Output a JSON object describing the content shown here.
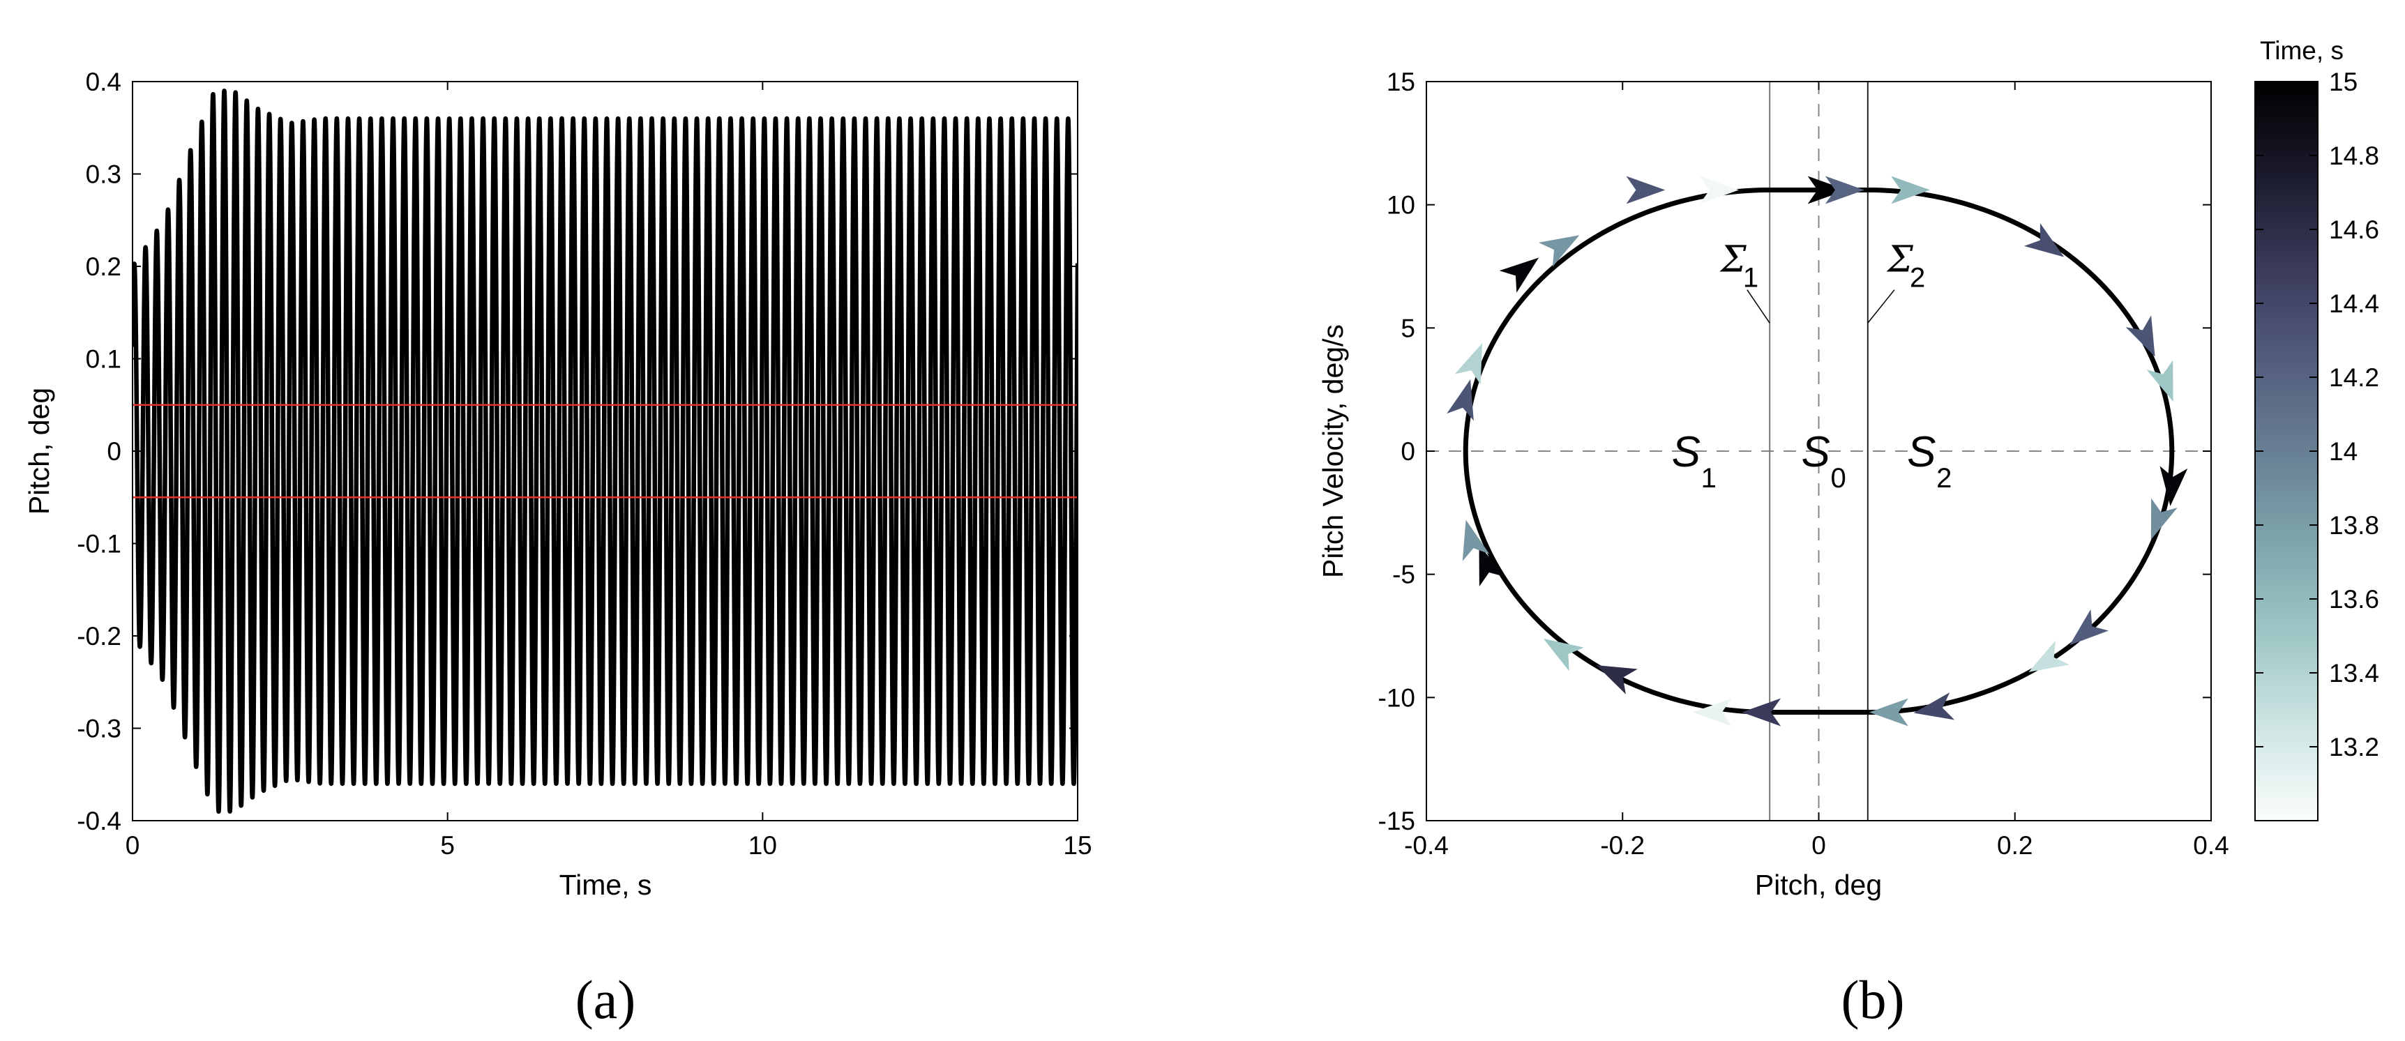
{
  "chart_data": [
    {
      "type": "line",
      "panel_label": "(a)",
      "xlabel": "Time, s",
      "ylabel": "Pitch, deg",
      "xlim": [
        0,
        15
      ],
      "ylim": [
        -0.4,
        0.4
      ],
      "xticks": [
        0,
        5,
        10,
        15
      ],
      "xtick_labels": [
        "0",
        "5",
        "10",
        "15"
      ],
      "yticks": [
        0.4,
        0.3,
        0.2,
        0.1,
        0,
        -0.1,
        -0.2,
        -0.3,
        -0.4
      ],
      "ytick_labels": [
        "0.4",
        "0.3",
        "0.2",
        "0.1",
        "0",
        "-0.1",
        "-0.2",
        "-0.3",
        "-0.4"
      ],
      "series": [
        {
          "color": "#000000",
          "frequency_hz": 5.6,
          "envelope": [
            [
              0,
              0.2
            ],
            [
              0.5,
              0.25
            ],
            [
              1.0,
              0.34
            ],
            [
              1.3,
              0.39
            ],
            [
              1.6,
              0.39
            ],
            [
              2.0,
              0.37
            ],
            [
              2.5,
              0.355
            ],
            [
              3.0,
              0.36
            ],
            [
              15,
              0.36
            ]
          ]
        }
      ],
      "reference_lines": [
        {
          "y": 0.05,
          "color": "#e8322d"
        },
        {
          "y": -0.05,
          "color": "#e8322d"
        }
      ],
      "grid": false
    },
    {
      "type": "line",
      "panel_label": "(b)",
      "xlabel": "Pitch, deg",
      "ylabel": "Pitch Velocity, deg/s",
      "xlim": [
        -0.4,
        0.4
      ],
      "ylim": [
        -15,
        15
      ],
      "xticks": [
        -0.4,
        -0.2,
        0,
        0.2,
        0.4
      ],
      "xtick_labels": [
        "-0.4",
        "-0.2",
        "0",
        "0.2",
        "0.4"
      ],
      "yticks": [
        15,
        10,
        5,
        0,
        -5,
        -10,
        -15
      ],
      "ytick_labels": [
        "15",
        "10",
        "5",
        "0",
        "-5",
        "-10",
        "-15"
      ],
      "orbit": {
        "amplitude_deg": 0.36,
        "peak_velocity_degps": 10.6,
        "dead_zone_deg": [
          -0.05,
          0.05
        ],
        "direction": "clockwise"
      },
      "switching_lines": [
        {
          "name": "Σ1",
          "x": -0.05
        },
        {
          "name": "Σ2",
          "x": 0.05
        }
      ],
      "regions": [
        {
          "base": "S",
          "sub": "1",
          "x": -0.15,
          "y": 0
        },
        {
          "base": "S",
          "sub": "0",
          "x": 0.0,
          "y": 0
        },
        {
          "base": "S",
          "sub": "2",
          "x": 0.09,
          "y": 0
        }
      ],
      "sigma_labels": [
        {
          "base": "Σ",
          "sub": "1",
          "x": -0.1,
          "y": 7
        },
        {
          "base": "Σ",
          "sub": "2",
          "x": 0.07,
          "y": 7
        }
      ],
      "arrows": [
        {
          "x": -0.1,
          "y": 10.6,
          "angle_deg": 0,
          "t": 13.05
        },
        {
          "x": -0.175,
          "y": 10.6,
          "angle_deg": 0,
          "t": 14.3
        },
        {
          "x": 0.01,
          "y": 10.6,
          "angle_deg": 0,
          "t": 14.98
        },
        {
          "x": 0.095,
          "y": 10.6,
          "angle_deg": 0,
          "t": 13.6
        },
        {
          "x": 0.028,
          "y": 10.6,
          "angle_deg": 0,
          "t": 14.2
        },
        {
          "x": 0.235,
          "y": 8.3,
          "angle_deg": 35,
          "t": 14.35
        },
        {
          "x": 0.335,
          "y": 4.5,
          "angle_deg": 65,
          "t": 14.3
        },
        {
          "x": 0.355,
          "y": 2.7,
          "angle_deg": 70,
          "t": 13.5
        },
        {
          "x": 0.36,
          "y": -1.5,
          "angle_deg": 95,
          "t": 14.95
        },
        {
          "x": 0.345,
          "y": -2.9,
          "angle_deg": 110,
          "t": 13.9
        },
        {
          "x": 0.27,
          "y": -7.4,
          "angle_deg": 140,
          "t": 14.25
        },
        {
          "x": 0.23,
          "y": -8.6,
          "angle_deg": 150,
          "t": 13.3
        },
        {
          "x": 0.115,
          "y": -10.5,
          "angle_deg": 170,
          "t": 14.4
        },
        {
          "x": 0.07,
          "y": -10.6,
          "angle_deg": 180,
          "t": 13.8
        },
        {
          "x": -0.06,
          "y": -10.6,
          "angle_deg": 180,
          "t": 14.5
        },
        {
          "x": -0.11,
          "y": -10.6,
          "angle_deg": 180,
          "t": 13.1
        },
        {
          "x": -0.21,
          "y": -9.0,
          "angle_deg": 205,
          "t": 14.6
        },
        {
          "x": -0.265,
          "y": -8.0,
          "angle_deg": 212,
          "t": 13.5
        },
        {
          "x": -0.34,
          "y": -4.5,
          "angle_deg": 250,
          "t": 14.95
        },
        {
          "x": -0.355,
          "y": -3.5,
          "angle_deg": 255,
          "t": 13.85
        },
        {
          "x": -0.36,
          "y": 2.2,
          "angle_deg": 285,
          "t": 14.3
        },
        {
          "x": -0.35,
          "y": 3.7,
          "angle_deg": 292,
          "t": 13.4
        },
        {
          "x": -0.3,
          "y": 7.4,
          "angle_deg": 322,
          "t": 14.95
        },
        {
          "x": -0.26,
          "y": 8.4,
          "angle_deg": 330,
          "t": 13.85
        }
      ],
      "colorbar": {
        "title": "Time, s",
        "range": [
          13.0,
          15.0
        ],
        "ticks": [
          15,
          14.8,
          14.6,
          14.4,
          14.2,
          14,
          13.8,
          13.6,
          13.4,
          13.2
        ],
        "tick_labels": [
          "15",
          "14.8",
          "14.6",
          "14.4",
          "14.2",
          "14",
          "13.8",
          "13.6",
          "13.4",
          "13.2"
        ],
        "colormap": [
          "#fafdfc",
          "#cfe6e4",
          "#9fc7c6",
          "#7ea5ac",
          "#687f93",
          "#525c7c",
          "#3a3a5a",
          "#1a1a2c",
          "#000000"
        ]
      },
      "grid": false
    }
  ]
}
